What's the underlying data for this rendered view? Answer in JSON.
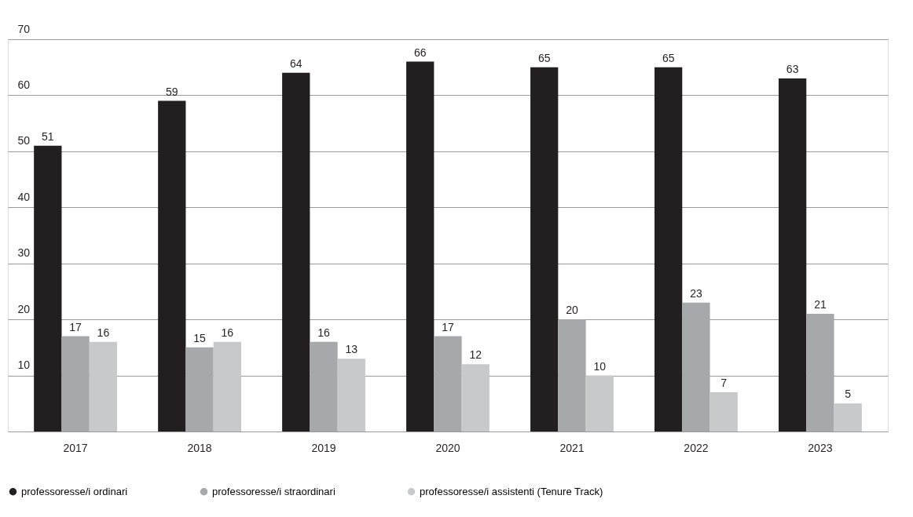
{
  "chart_data": {
    "type": "bar",
    "categories": [
      "2017",
      "2018",
      "2019",
      "2020",
      "2021",
      "2022",
      "2023"
    ],
    "series": [
      {
        "name": "professoresse/i ordinari",
        "color": "#231f20",
        "values": [
          51,
          59,
          64,
          66,
          65,
          65,
          63
        ]
      },
      {
        "name": "professoresse/i straordinari",
        "color": "#a7a8ab",
        "values": [
          17,
          15,
          16,
          17,
          20,
          23,
          21
        ]
      },
      {
        "name": "professoresse/i assistenti (Tenure Track)",
        "color": "#c8c9cb",
        "values": [
          16,
          16,
          13,
          12,
          10,
          7,
          5
        ]
      }
    ],
    "ylim": [
      0,
      70
    ],
    "yticks": [
      {
        "value": 0,
        "label": null
      },
      10,
      20,
      30,
      40,
      50,
      60,
      70
    ],
    "grid": "y",
    "legend": "bottom left",
    "data_labels": true
  }
}
